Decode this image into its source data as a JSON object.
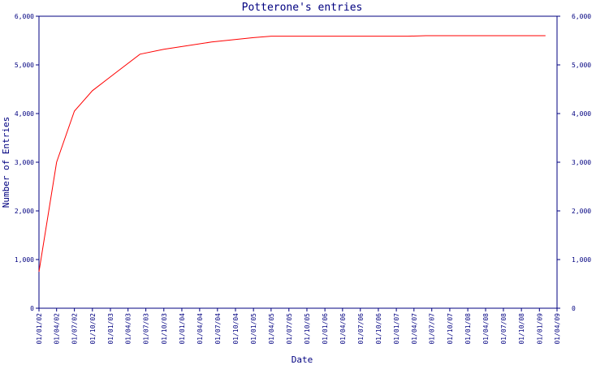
{
  "chart_data": {
    "type": "line",
    "title": "Potterone's entries",
    "xlabel": "Date",
    "ylabel": "Number of Entries",
    "ylim": [
      0,
      6000
    ],
    "y_ticks": [
      0,
      1000,
      2000,
      3000,
      4000,
      5000,
      6000
    ],
    "y_tick_labels": [
      "0",
      "1,000",
      "2,000",
      "3,000",
      "4,000",
      "5,000",
      "6,000"
    ],
    "x_tick_labels": [
      "01/01/02",
      "01/04/02",
      "01/07/02",
      "01/10/02",
      "01/01/03",
      "01/04/03",
      "01/07/03",
      "01/10/03",
      "01/01/04",
      "01/04/04",
      "01/07/04",
      "01/10/04",
      "01/01/05",
      "01/04/05",
      "01/07/05",
      "01/10/05",
      "01/01/06",
      "01/04/06",
      "01/07/06",
      "01/10/06",
      "01/01/07",
      "01/04/07",
      "01/07/07",
      "01/10/07",
      "01/01/08",
      "01/04/08",
      "01/07/08",
      "01/10/08",
      "01/01/09",
      "01/04/09"
    ],
    "right_axis": true,
    "grid": false,
    "colors": {
      "axis": "#000080",
      "line": "#ff0000",
      "text": "#000080"
    },
    "series": [
      {
        "x": [
          "2002-01-01",
          "2002-04-01",
          "2002-07-01",
          "2002-10-01",
          "2003-02-01",
          "2003-06-01",
          "2003-10-01",
          "2004-06-01",
          "2005-01-01",
          "2005-04-01",
          "2007-03-01",
          "2007-06-01",
          "2009-02-01"
        ],
        "values": [
          750,
          3000,
          4050,
          4470,
          4850,
          5220,
          5320,
          5470,
          5560,
          5590,
          5590,
          5600,
          5600
        ]
      }
    ]
  }
}
